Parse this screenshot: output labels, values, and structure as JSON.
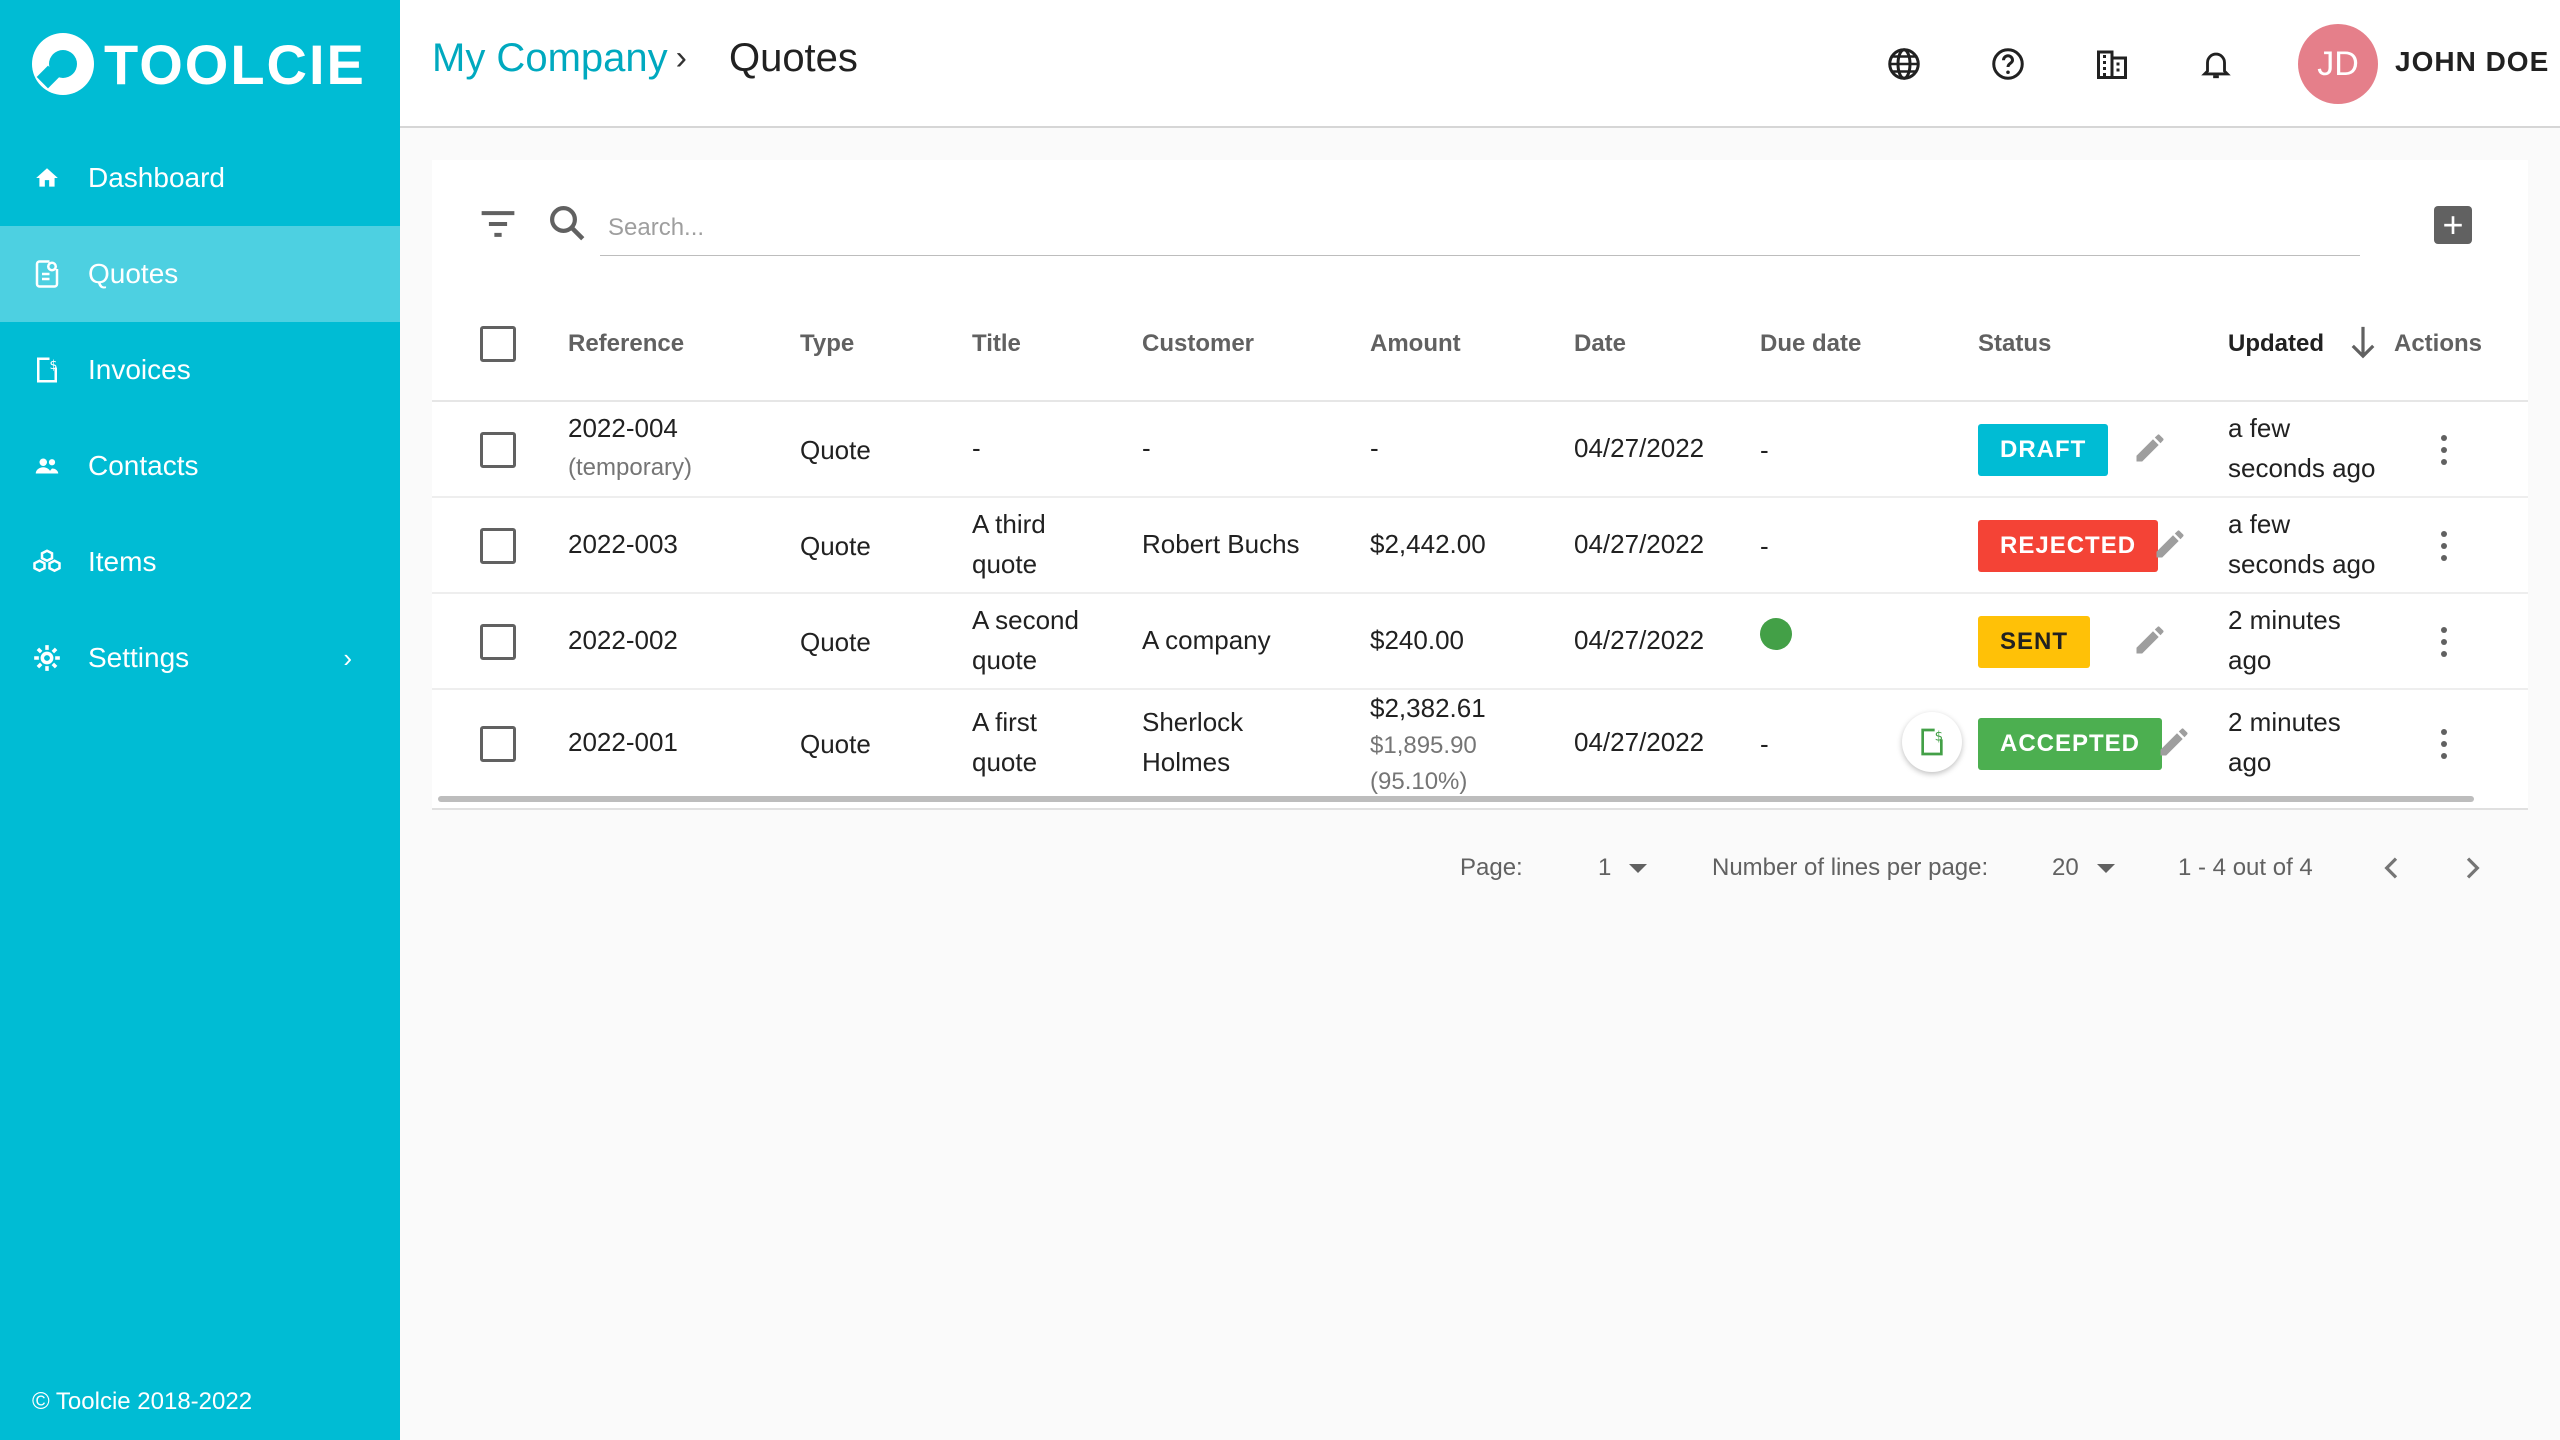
{
  "app": {
    "logo_text": "TOOLCIE",
    "copyright": "© Toolcie 2018-2022"
  },
  "sidebar": {
    "items": [
      {
        "label": "Dashboard",
        "icon": "home-icon"
      },
      {
        "label": "Quotes",
        "icon": "quote-icon",
        "active": true
      },
      {
        "label": "Invoices",
        "icon": "invoice-icon"
      },
      {
        "label": "Contacts",
        "icon": "contacts-icon"
      },
      {
        "label": "Items",
        "icon": "items-icon"
      },
      {
        "label": "Settings",
        "icon": "gear-icon",
        "has_submenu": true
      }
    ]
  },
  "header": {
    "breadcrumb_company": "My Company",
    "breadcrumb_sep": "›",
    "page_title": "Quotes",
    "icons": [
      "globe-icon",
      "help-icon",
      "building-icon",
      "bell-icon"
    ],
    "avatar_initials": "JD",
    "user_name": "JOHN DOE"
  },
  "toolbar": {
    "search_placeholder": "Search...",
    "add_label": "+"
  },
  "table": {
    "columns": {
      "reference": "Reference",
      "type": "Type",
      "title": "Title",
      "customer": "Customer",
      "amount": "Amount",
      "date": "Date",
      "due_date": "Due date",
      "status": "Status",
      "updated": "Updated",
      "actions": "Actions"
    },
    "rows": [
      {
        "reference": "2022-004",
        "reference_sub": "(temporary)",
        "type": "Quote",
        "title1": "-",
        "title2": "",
        "customer1": "-",
        "customer2": "",
        "amount": "-",
        "date": "04/27/2022",
        "due_date": "-",
        "status": "DRAFT",
        "status_color": "#00bcd4",
        "updated1": "a few",
        "updated2": "seconds ago"
      },
      {
        "reference": "2022-003",
        "type": "Quote",
        "title1": "A third",
        "title2": "quote",
        "customer1": "Robert Buchs",
        "customer2": "",
        "amount": "$2,442.00",
        "date": "04/27/2022",
        "due_date": "-",
        "status": "REJECTED",
        "status_color": "#f44336",
        "updated1": "a few",
        "updated2": "seconds ago"
      },
      {
        "reference": "2022-002",
        "type": "Quote",
        "title1": "A second",
        "title2": "quote",
        "customer1": "A company",
        "customer2": "",
        "amount": "$240.00",
        "date": "04/27/2022",
        "due_date_dot_color": "#43a047",
        "status": "SENT",
        "status_color": "#ffc107",
        "updated1": "2 minutes",
        "updated2": "ago"
      },
      {
        "reference": "2022-001",
        "type": "Quote",
        "title1": "A first",
        "title2": "quote",
        "customer1": "Sherlock",
        "customer2": "Holmes",
        "amount": "$2,382.61",
        "amount_sub1": "$1,895.90",
        "amount_sub2": "(95.10%)",
        "date": "04/27/2022",
        "due_date": "-",
        "status": "ACCEPTED",
        "status_color": "#4caf50",
        "updated1": "2 minutes",
        "updated2": "ago"
      }
    ]
  },
  "pagination": {
    "page_label": "Page:",
    "page_value": "1",
    "lines_label": "Number of lines per page:",
    "lines_value": "20",
    "range": "1 - 4 out of 4"
  }
}
